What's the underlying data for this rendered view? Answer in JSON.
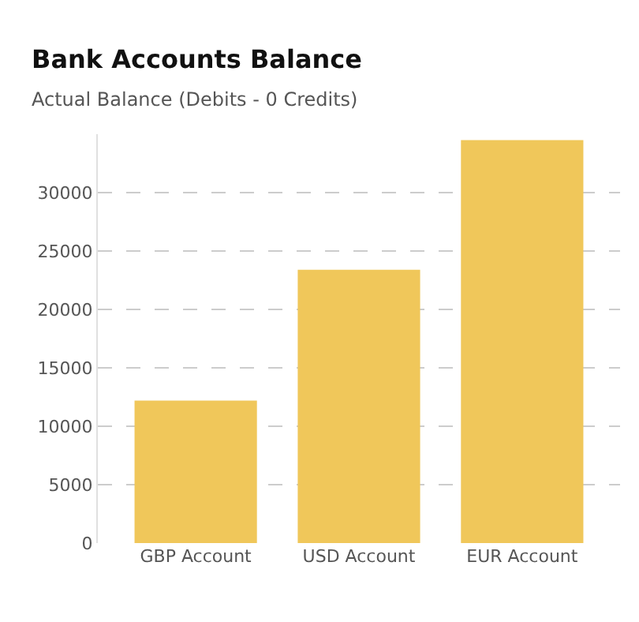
{
  "chart_data": {
    "type": "bar",
    "title": "Bank Accounts Balance",
    "subtitle": "Actual Balance (Debits - 0 Credits)",
    "categories": [
      "GBP Account",
      "USD Account",
      "EUR Account"
    ],
    "values": [
      12200,
      23400,
      34500
    ],
    "color": "#f0c75a",
    "ylim": [
      0,
      35000
    ],
    "yticks": [
      0,
      5000,
      10000,
      15000,
      20000,
      25000,
      30000
    ],
    "grid": "y"
  }
}
